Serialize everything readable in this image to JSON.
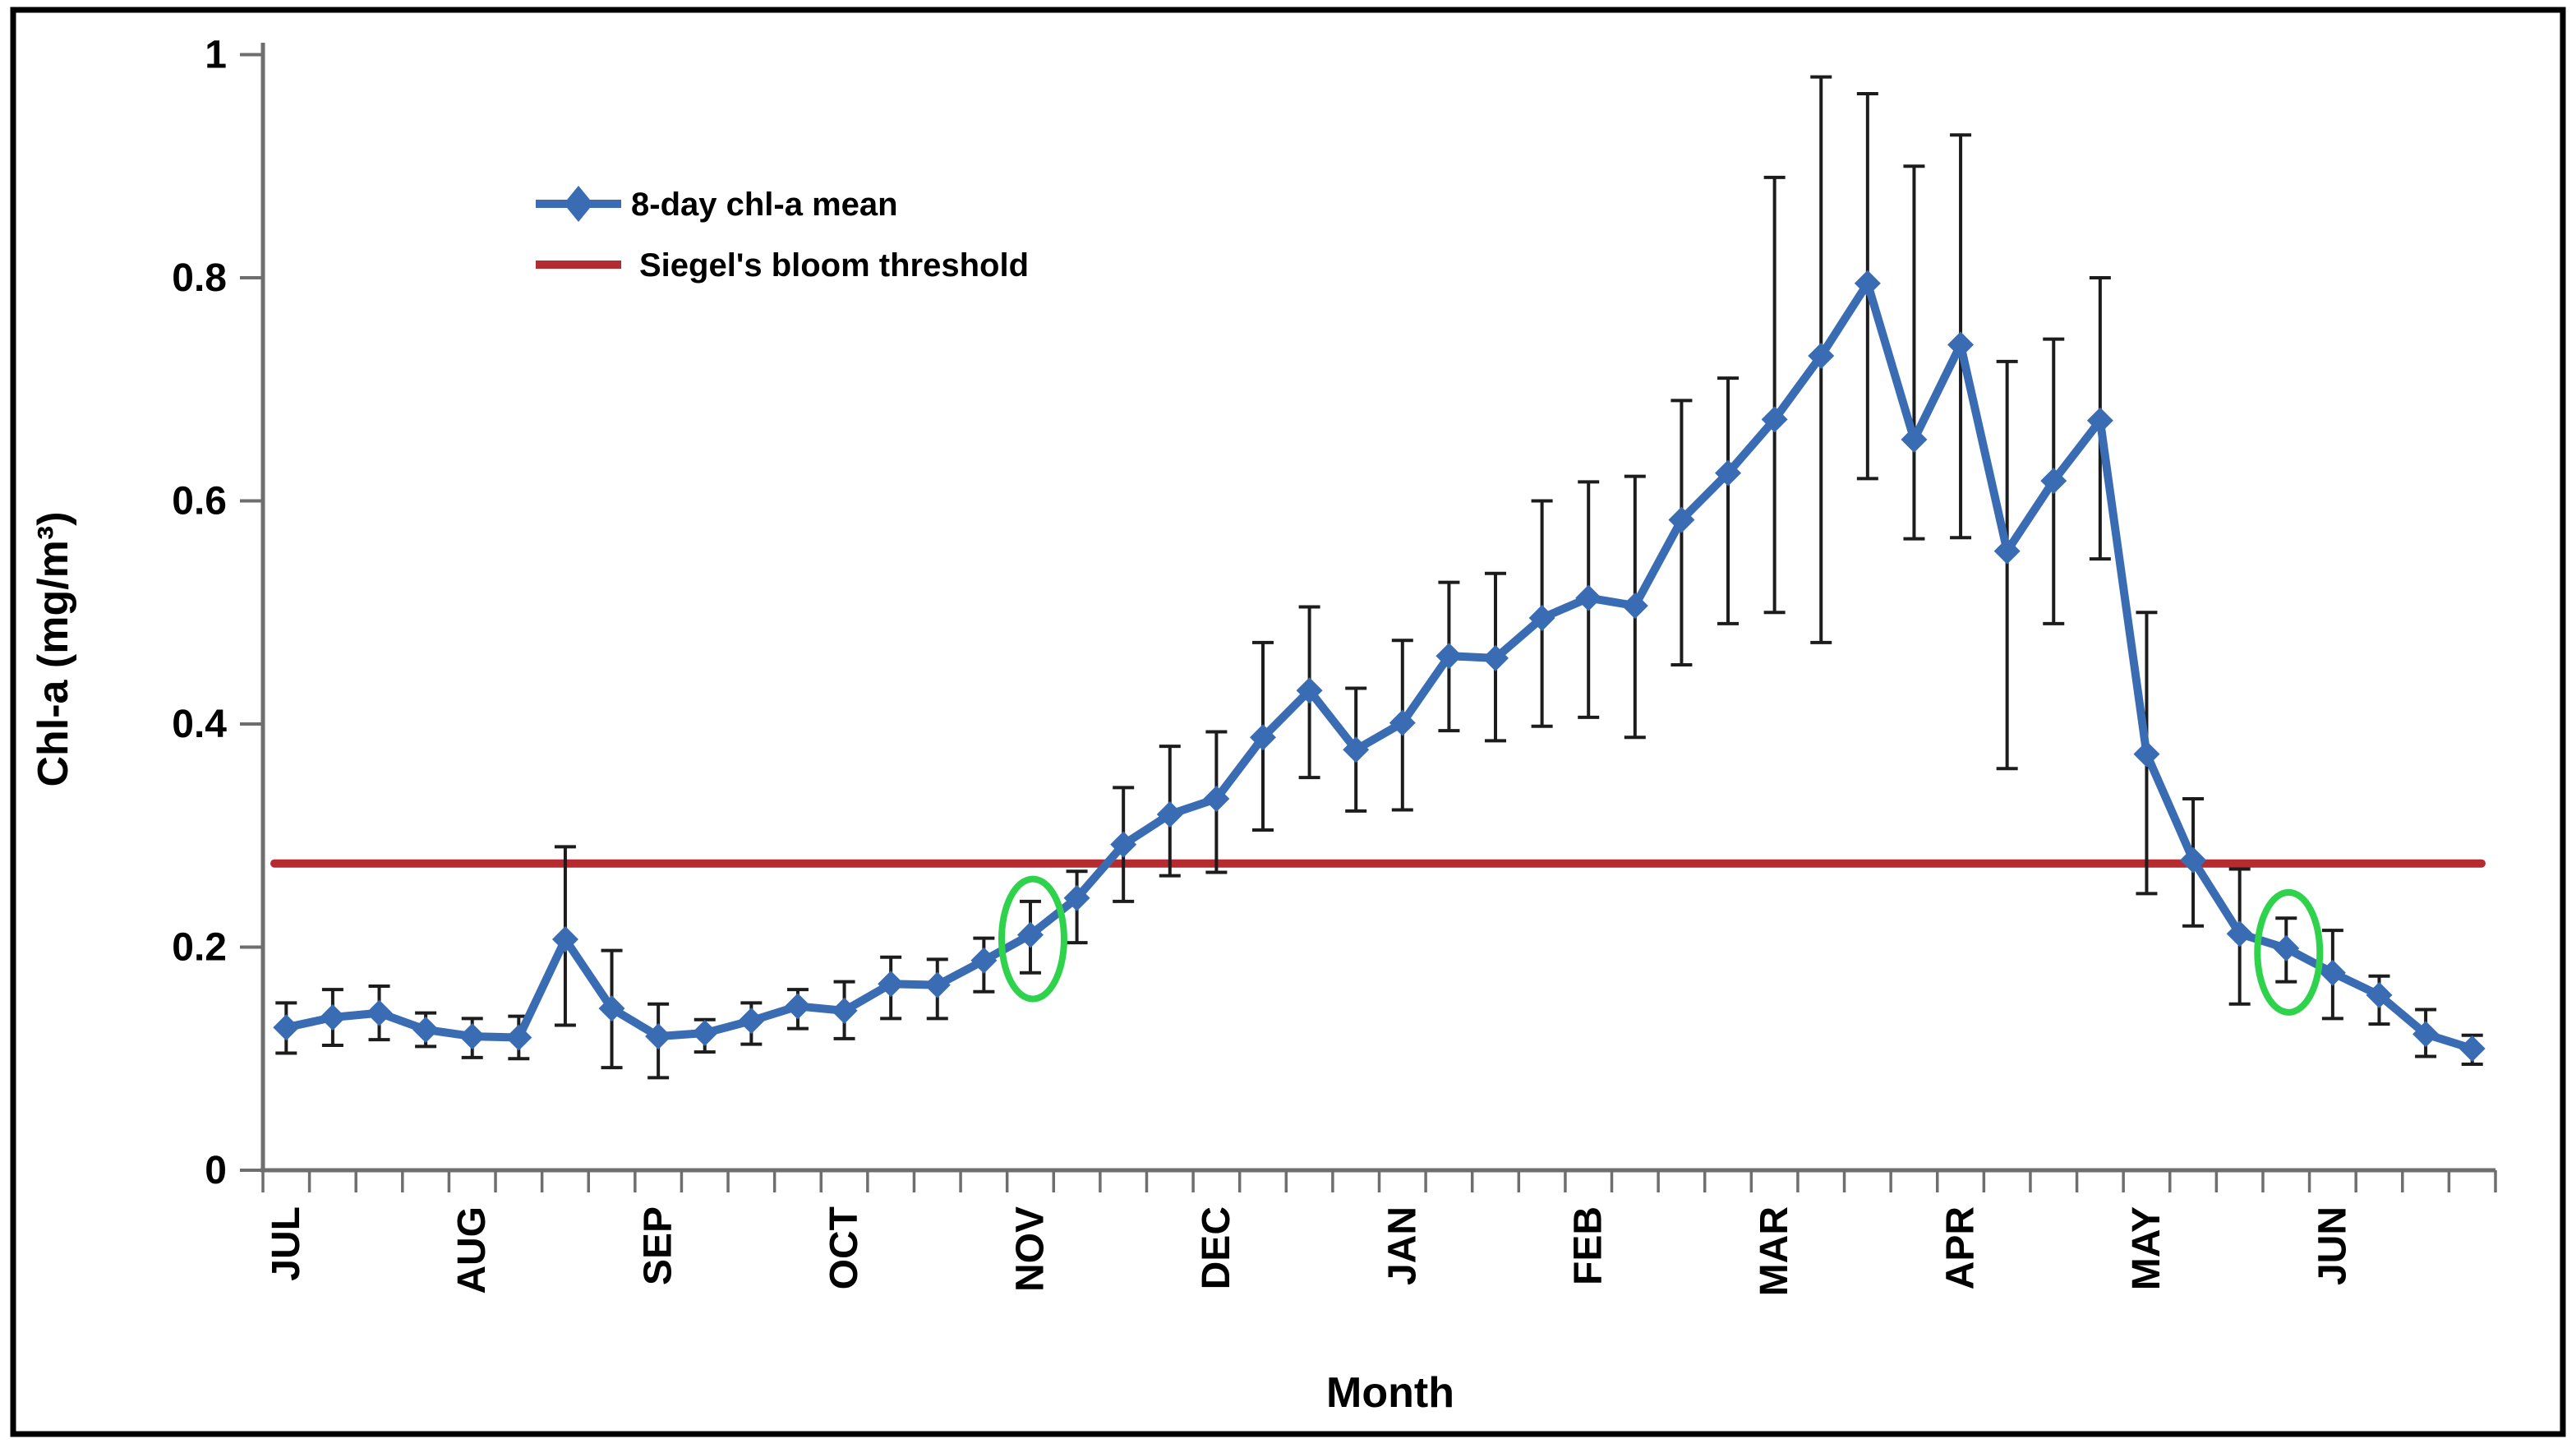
{
  "colors": {
    "series_blue": "#3A6CB3",
    "threshold_red": "#B42B30",
    "error_bar": "#1c1c1c",
    "highlight_green": "#2ED24B",
    "axis_gray": "#6e6e6e",
    "text_black": "#000000",
    "frame_black": "#000000",
    "background": "#ffffff"
  },
  "legend": {
    "series_label": "8-day chl-a mean",
    "threshold_label": "Siegel's bloom threshold"
  },
  "chart_data": {
    "type": "line",
    "title": "",
    "xlabel": "Month",
    "ylabel": "Chl-a (mg/m³)",
    "ylim": [
      0,
      1
    ],
    "ytick_values": [
      0,
      0.2,
      0.4,
      0.6,
      0.8,
      1
    ],
    "ytick_labels": [
      "0",
      "0.2",
      "0.4",
      "0.6",
      "0.8",
      "1"
    ],
    "categories": [
      "JUL",
      "AUG",
      "SEP",
      "OCT",
      "NOV",
      "DEC",
      "JAN",
      "FEB",
      "MAR",
      "APR",
      "MAY",
      "JUN"
    ],
    "points_per_month": 4,
    "grid": false,
    "legend_position": "inside-top-left",
    "threshold_value": 0.275,
    "highlighted_point_indices": [
      16,
      43
    ],
    "series": [
      {
        "name": "8-day chl-a mean",
        "marker": "diamond",
        "values": [
          0.128,
          0.137,
          0.141,
          0.126,
          0.12,
          0.119,
          0.207,
          0.145,
          0.12,
          0.123,
          0.134,
          0.147,
          0.143,
          0.167,
          0.166,
          0.188,
          0.211,
          0.244,
          0.292,
          0.319,
          0.333,
          0.388,
          0.43,
          0.377,
          0.401,
          0.461,
          0.459,
          0.495,
          0.513,
          0.506,
          0.583,
          0.625,
          0.673,
          0.73,
          0.795,
          0.655,
          0.74,
          0.555,
          0.618,
          0.672,
          0.373,
          0.278,
          0.212,
          0.199,
          0.177,
          0.157,
          0.122,
          0.109
        ],
        "err_low": [
          0.105,
          0.112,
          0.117,
          0.111,
          0.101,
          0.1,
          0.13,
          0.092,
          0.083,
          0.106,
          0.113,
          0.127,
          0.118,
          0.136,
          0.136,
          0.16,
          0.177,
          0.204,
          0.241,
          0.264,
          0.267,
          0.305,
          0.352,
          0.322,
          0.323,
          0.394,
          0.385,
          0.398,
          0.406,
          0.388,
          0.453,
          0.49,
          0.5,
          0.473,
          0.62,
          0.566,
          0.567,
          0.36,
          0.49,
          0.548,
          0.248,
          0.219,
          0.149,
          0.169,
          0.136,
          0.131,
          0.102,
          0.095
        ],
        "err_high": [
          0.15,
          0.162,
          0.165,
          0.141,
          0.136,
          0.138,
          0.29,
          0.197,
          0.149,
          0.135,
          0.15,
          0.162,
          0.169,
          0.191,
          0.189,
          0.208,
          0.241,
          0.268,
          0.343,
          0.38,
          0.393,
          0.473,
          0.505,
          0.432,
          0.475,
          0.527,
          0.535,
          0.6,
          0.617,
          0.622,
          0.69,
          0.71,
          0.89,
          0.98,
          0.965,
          0.9,
          0.928,
          0.725,
          0.745,
          0.8,
          0.5,
          0.333,
          0.27,
          0.226,
          0.215,
          0.174,
          0.144,
          0.121
        ]
      }
    ]
  }
}
